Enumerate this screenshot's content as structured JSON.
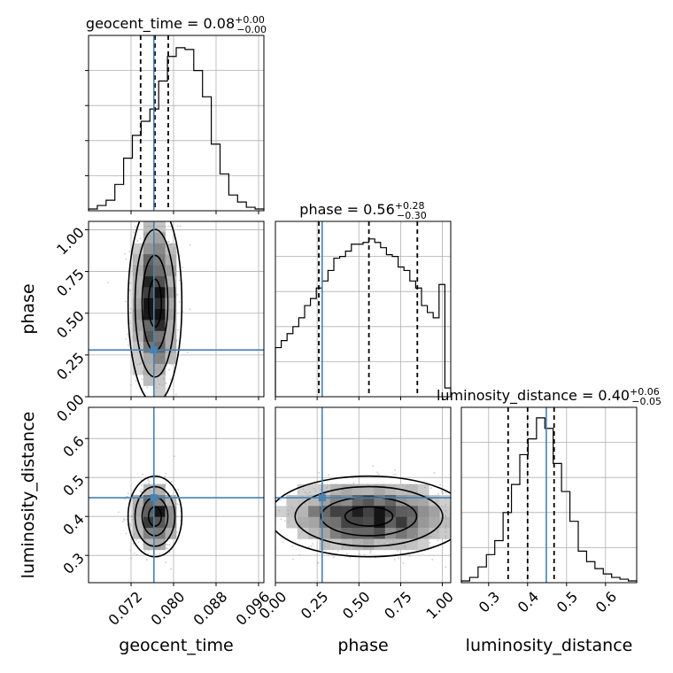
{
  "chart_data": {
    "type": "corner",
    "colors": {
      "truth": "#4682b4",
      "hist": "#000000",
      "points": "#a0a0a0",
      "grid": "#b0b0b0"
    },
    "grid": true,
    "parameters": [
      {
        "name": "geocent_time",
        "xlabel": "geocent_time",
        "range": [
          0.064,
          0.097
        ],
        "ticks": [
          0.072,
          0.08,
          0.088,
          0.096
        ],
        "tick_labels": [
          "0.072",
          "0.080",
          "0.088",
          "0.096"
        ],
        "truth": 0.0763,
        "quantiles": [
          0.0738,
          0.0765,
          0.079
        ],
        "title_main": "geocent_time = 0.08",
        "title_plus": "+0.00",
        "title_minus": "−0.00",
        "hist_heights": [
          0.01,
          0.03,
          0.06,
          0.15,
          0.3,
          0.43,
          0.51,
          0.58,
          0.74,
          0.88,
          0.93,
          0.92,
          0.8,
          0.65,
          0.38,
          0.21,
          0.09,
          0.05,
          0.02,
          0.01
        ]
      },
      {
        "name": "phase",
        "xlabel": "phase",
        "ylabel": "phase",
        "range": [
          0.0,
          1.05
        ],
        "ticks": [
          0.0,
          0.25,
          0.5,
          0.75,
          1.0
        ],
        "tick_labels": [
          "0.00",
          "0.25",
          "0.50",
          "0.75",
          "1.00"
        ],
        "truth": 0.28,
        "quantiles": [
          0.26,
          0.56,
          0.85
        ],
        "title_main": "phase = 0.56",
        "title_plus": "+0.28",
        "title_minus": "−0.30",
        "hist_heights": [
          0.28,
          0.32,
          0.36,
          0.4,
          0.45,
          0.52,
          0.56,
          0.62,
          0.66,
          0.72,
          0.79,
          0.8,
          0.83,
          0.87,
          0.87,
          0.88,
          0.9,
          0.88,
          0.85,
          0.81,
          0.8,
          0.74,
          0.72,
          0.66,
          0.62,
          0.52,
          0.48,
          0.45,
          0.64,
          0.05
        ]
      },
      {
        "name": "luminosity_distance",
        "xlabel": "luminosity_distance",
        "ylabel": "luminosity_distance",
        "range": [
          0.23,
          0.68
        ],
        "ticks": [
          0.3,
          0.4,
          0.5,
          0.6
        ],
        "tick_labels": [
          "0.3",
          "0.4",
          "0.5",
          "0.6"
        ],
        "truth": 0.448,
        "quantiles": [
          0.35,
          0.4,
          0.468
        ],
        "title_main": "luminosity_distance = 0.40",
        "title_plus": "+0.06",
        "title_minus": "−0.05",
        "hist_heights": [
          0.01,
          0.03,
          0.09,
          0.16,
          0.24,
          0.4,
          0.56,
          0.73,
          0.82,
          0.94,
          0.88,
          0.68,
          0.52,
          0.35,
          0.18,
          0.12,
          0.08,
          0.05,
          0.03,
          0.02,
          0.01
        ]
      }
    ]
  }
}
